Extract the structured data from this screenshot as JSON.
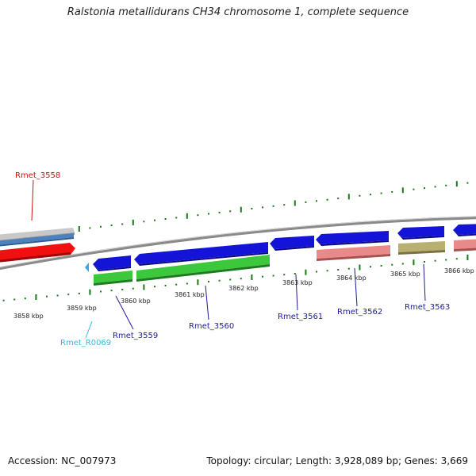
{
  "header": {
    "title": "Ralstonia metallidurans CH34 chromosome 1, complete sequence"
  },
  "footer": {
    "accession": "Accession: NC_007973",
    "topology": "Topology: circular; Length: 3,928,089 bp; Genes: 3,669"
  },
  "colors": {
    "backbone": "#8a8a8a",
    "tick": "#1a7a1a",
    "cds_forward": "#1414d8",
    "cds_green": "#3cc83c",
    "cds_red": "#f01010",
    "cds_salmon": "#e88a8a",
    "cds_olive": "#b8b070",
    "cds_steel": "#4a82c0",
    "cds_gray": "#c8c8c8",
    "trna": "#3aa8e0",
    "label_red": "#cc1111",
    "label_navy": "#1a1a9a",
    "label_cyan": "#33bbdd"
  },
  "axis": {
    "ticks": [
      {
        "label": "3858 kbp"
      },
      {
        "label": "3859 kbp"
      },
      {
        "label": "3860 kbp"
      },
      {
        "label": "3861 kbp"
      },
      {
        "label": "3862 kbp"
      },
      {
        "label": "3863 kbp"
      },
      {
        "label": "3864 kbp"
      },
      {
        "label": "3865 kbp"
      },
      {
        "label": "3866 kbp"
      }
    ]
  },
  "genes": [
    {
      "id": "Rmet_3558",
      "color_key": "label_red"
    },
    {
      "id": "Rmet_R0069",
      "color_key": "label_cyan"
    },
    {
      "id": "Rmet_3559",
      "color_key": "label_navy"
    },
    {
      "id": "Rmet_3560",
      "color_key": "label_navy"
    },
    {
      "id": "Rmet_3561",
      "color_key": "label_navy"
    },
    {
      "id": "Rmet_3562",
      "color_key": "label_navy"
    },
    {
      "id": "Rmet_3563",
      "color_key": "label_navy"
    }
  ]
}
